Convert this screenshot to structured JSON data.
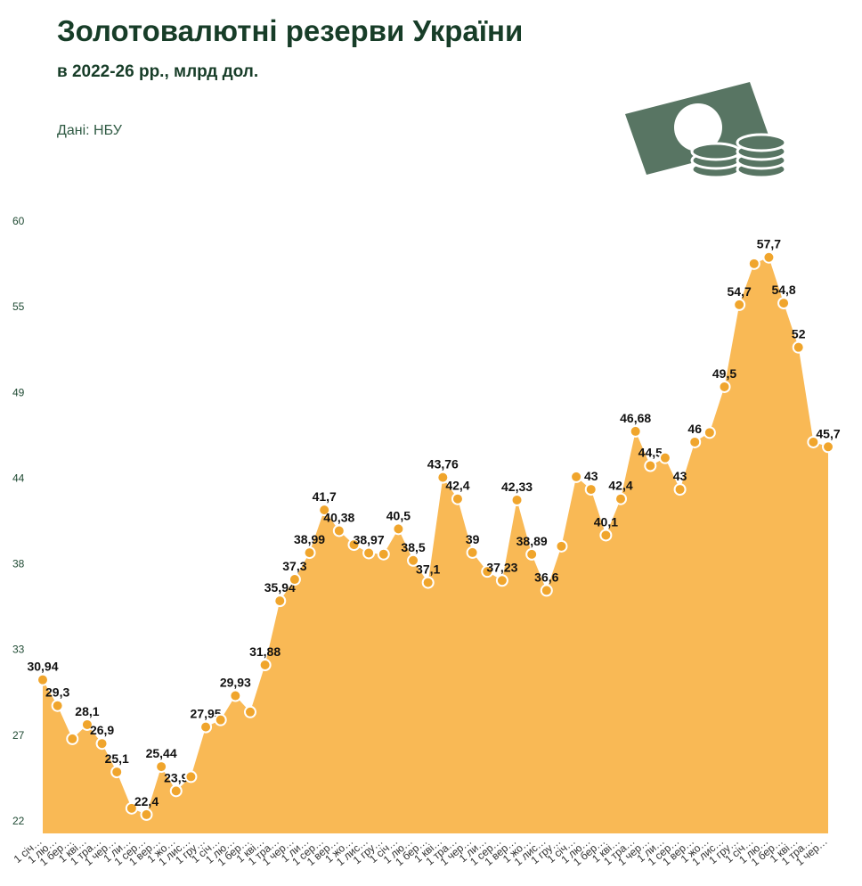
{
  "chart_data": {
    "type": "area",
    "title": "Золотовалютні резерви України",
    "subtitle": "в 2022-26 рр., млрд дол.",
    "source": "Дані: НБУ",
    "categories": [
      "1 січ…",
      "1 лю…",
      "1 бер…",
      "1 кві…",
      "1 тра…",
      "1 чер…",
      "1 ли…",
      "1 сер…",
      "1 вер…",
      "1 жо…",
      "1 лис…",
      "1 гру…",
      "1 січ…",
      "1 лю…",
      "1 бер…",
      "1 кві…",
      "1 тра…",
      "1 чер…",
      "1 ли…",
      "1 сер…",
      "1 вер…",
      "1 жо…",
      "1 лис…",
      "1 гру…",
      "1 січ…",
      "1 лю…",
      "1 бер…",
      "1 кві…",
      "1 тра…",
      "1 чер…",
      "1 ли…",
      "1 сер…",
      "1 вер…",
      "1 жо…",
      "1 лис…",
      "1 гру…",
      "1 січ…",
      "1 лю…",
      "1 бер…",
      "1 кві…",
      "1 тра…",
      "1 чер…",
      "1 ли…",
      "1 сер…",
      "1 вер…",
      "1 жо…",
      "1 лис…",
      "1 гру…",
      "1 січ…",
      "1 лю…",
      "1 бер…",
      "1 кві…",
      "1 тра…",
      "1 чер…"
    ],
    "values": [
      30.94,
      29.3,
      27.2,
      28.1,
      26.9,
      25.1,
      22.8,
      22.4,
      25.44,
      23.9,
      24.8,
      27.95,
      28.4,
      29.93,
      28.9,
      31.88,
      35.94,
      37.3,
      38.99,
      41.7,
      40.38,
      39.5,
      38.97,
      38.9,
      40.5,
      38.5,
      37.1,
      43.76,
      42.4,
      39,
      37.8,
      37.23,
      42.33,
      38.89,
      36.6,
      39.4,
      43.8,
      43,
      40.1,
      42.4,
      46.68,
      44.5,
      45,
      43,
      46,
      46.6,
      49.5,
      54.7,
      57.3,
      57.7,
      54.8,
      52,
      46,
      45.7
    ],
    "value_labels": [
      "30,94",
      "29,3",
      null,
      "28,1",
      "26,9",
      "25,1",
      null,
      "22,4",
      "25,44",
      "23,9",
      null,
      "27,95",
      null,
      "29,93",
      null,
      "31,88",
      "35,94",
      "37,3",
      "38,99",
      "41,7",
      "40,38",
      null,
      "38,97",
      null,
      "40,5",
      "38,5",
      "37,1",
      "43,76",
      "42,4",
      "39",
      null,
      "37,23",
      "42,33",
      "38,89",
      "36,6",
      null,
      null,
      "43",
      "40,1",
      "42,4",
      "46,68",
      "44,5",
      null,
      "43",
      "46",
      null,
      "49,5",
      "54,7",
      null,
      "57,7",
      "54,8",
      "52",
      null,
      "45,7"
    ],
    "color": "#f9b955",
    "marker_color": "#f0a52c",
    "ylim": [
      22,
      60
    ],
    "yticks": [
      22,
      {
        "value": 27.43,
        "label": "27"
      },
      {
        "value": 32.86,
        "label": "33"
      },
      {
        "value": 38.29,
        "label": "38"
      },
      {
        "value": 43.71,
        "label": "44"
      },
      {
        "value": 49.14,
        "label": "49"
      },
      {
        "value": 54.57,
        "label": "55"
      },
      60
    ]
  }
}
